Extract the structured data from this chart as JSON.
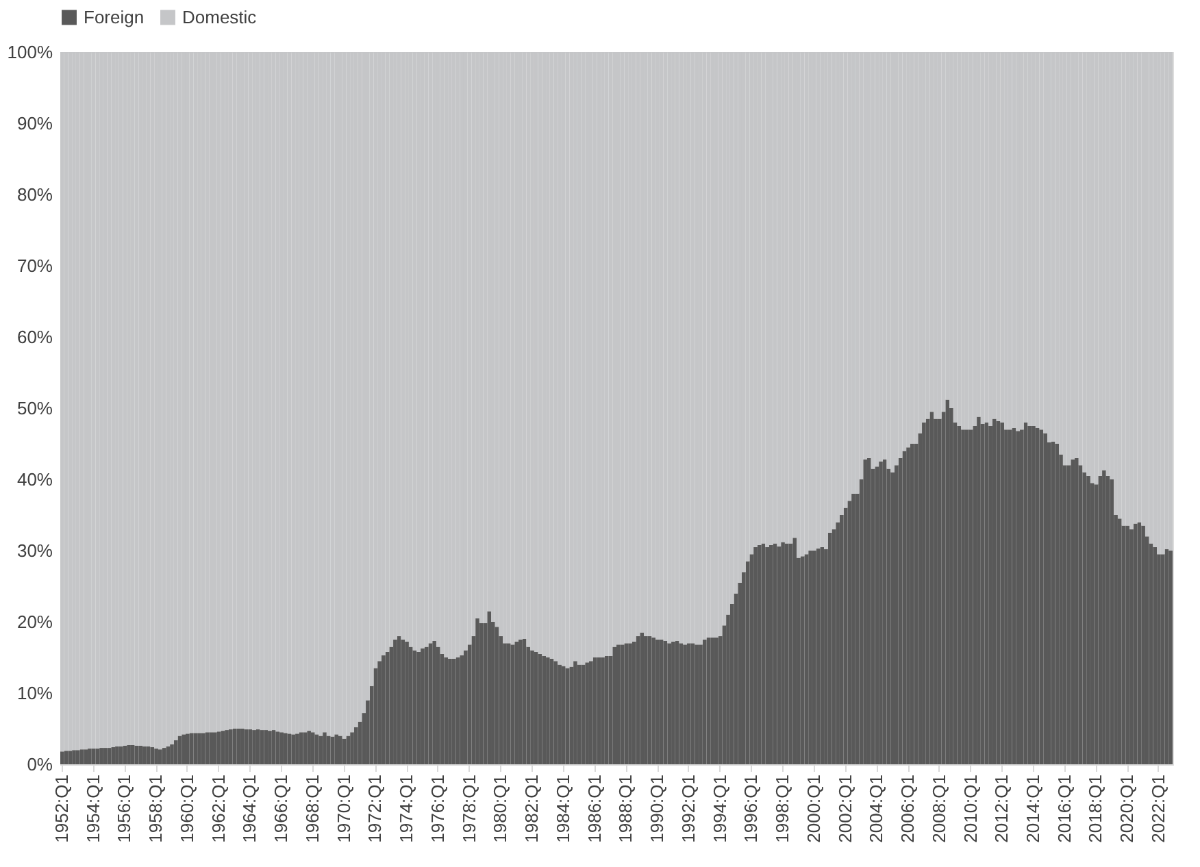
{
  "chart_data": {
    "type": "bar",
    "stacked": true,
    "legend": "top",
    "grid": false,
    "categories": [
      "1952:Q1",
      null,
      null,
      null,
      null,
      null,
      null,
      null,
      "1954:Q1",
      null,
      null,
      null,
      null,
      null,
      null,
      null,
      "1956:Q1",
      null,
      null,
      null,
      null,
      null,
      null,
      null,
      "1958:Q1",
      null,
      null,
      null,
      null,
      null,
      null,
      null,
      "1960:Q1",
      null,
      null,
      null,
      null,
      null,
      null,
      null,
      "1962:Q1",
      null,
      null,
      null,
      null,
      null,
      null,
      null,
      "1964:Q1",
      null,
      null,
      null,
      null,
      null,
      null,
      null,
      "1966:Q1",
      null,
      null,
      null,
      null,
      null,
      null,
      null,
      "1968:Q1",
      null,
      null,
      null,
      null,
      null,
      null,
      null,
      "1970:Q1",
      null,
      null,
      null,
      null,
      null,
      null,
      null,
      "1972:Q1",
      null,
      null,
      null,
      null,
      null,
      null,
      null,
      "1974:Q1",
      null,
      null,
      null,
      null,
      null,
      null,
      null,
      "1976:Q1",
      null,
      null,
      null,
      null,
      null,
      null,
      null,
      "1978:Q1",
      null,
      null,
      null,
      null,
      null,
      null,
      null,
      "1980:Q1",
      null,
      null,
      null,
      null,
      null,
      null,
      null,
      "1982:Q1",
      null,
      null,
      null,
      null,
      null,
      null,
      null,
      "1984:Q1",
      null,
      null,
      null,
      null,
      null,
      null,
      null,
      "1986:Q1",
      null,
      null,
      null,
      null,
      null,
      null,
      null,
      "1988:Q1",
      null,
      null,
      null,
      null,
      null,
      null,
      null,
      "1990:Q1",
      null,
      null,
      null,
      null,
      null,
      null,
      null,
      "1992:Q1",
      null,
      null,
      null,
      null,
      null,
      null,
      null,
      "1994:Q1",
      null,
      null,
      null,
      null,
      null,
      null,
      null,
      "1996:Q1",
      null,
      null,
      null,
      null,
      null,
      null,
      null,
      "1998:Q1",
      null,
      null,
      null,
      null,
      null,
      null,
      null,
      "2000:Q1",
      null,
      null,
      null,
      null,
      null,
      null,
      null,
      "2002:Q1",
      null,
      null,
      null,
      null,
      null,
      null,
      null,
      "2004:Q1",
      null,
      null,
      null,
      null,
      null,
      null,
      null,
      "2006:Q1",
      null,
      null,
      null,
      null,
      null,
      null,
      null,
      "2008:Q1",
      null,
      null,
      null,
      null,
      null,
      null,
      null,
      "2010:Q1",
      null,
      null,
      null,
      null,
      null,
      null,
      null,
      "2012:Q1",
      null,
      null,
      null,
      null,
      null,
      null,
      null,
      "2014:Q1",
      null,
      null,
      null,
      null,
      null,
      null,
      null,
      "2016:Q1",
      null,
      null,
      null,
      null,
      null,
      null,
      null,
      "2018:Q1",
      null,
      null,
      null,
      null,
      null,
      null,
      null,
      "2020:Q1",
      null,
      null,
      null,
      null,
      null,
      null,
      null,
      "2022:Q1",
      null,
      null,
      null
    ],
    "ylim": [
      0,
      100
    ],
    "yticks": [
      {
        "value": 0,
        "label": "0%"
      },
      {
        "value": 10,
        "label": "10%"
      },
      {
        "value": 20,
        "label": "20%"
      },
      {
        "value": 30,
        "label": "30%"
      },
      {
        "value": 40,
        "label": "40%"
      },
      {
        "value": 50,
        "label": "50%"
      },
      {
        "value": 60,
        "label": "60%"
      },
      {
        "value": 70,
        "label": "70%"
      },
      {
        "value": 80,
        "label": "80%"
      },
      {
        "value": 90,
        "label": "90%"
      },
      {
        "value": 100,
        "label": "100%"
      }
    ],
    "series": [
      {
        "name": "Foreign",
        "color": "#595959",
        "values": [
          1.8,
          1.9,
          1.9,
          2.0,
          2.0,
          2.1,
          2.1,
          2.2,
          2.2,
          2.2,
          2.3,
          2.3,
          2.3,
          2.4,
          2.5,
          2.5,
          2.6,
          2.7,
          2.7,
          2.6,
          2.6,
          2.5,
          2.5,
          2.4,
          2.2,
          2.1,
          2.3,
          2.5,
          2.8,
          3.4,
          4.0,
          4.2,
          4.3,
          4.4,
          4.4,
          4.4,
          4.4,
          4.5,
          4.5,
          4.5,
          4.6,
          4.7,
          4.8,
          4.9,
          5.0,
          5.0,
          5.0,
          4.9,
          4.9,
          4.8,
          4.9,
          4.8,
          4.8,
          4.7,
          4.8,
          4.6,
          4.5,
          4.4,
          4.3,
          4.2,
          4.3,
          4.5,
          4.5,
          4.7,
          4.5,
          4.2,
          4.0,
          4.5,
          4.0,
          3.9,
          4.2,
          4.0,
          3.6,
          4.0,
          4.5,
          5.2,
          6.0,
          7.2,
          9.0,
          11.0,
          13.5,
          14.5,
          15.3,
          15.8,
          16.5,
          17.5,
          18.0,
          17.5,
          17.2,
          16.5,
          16.0,
          15.8,
          16.3,
          16.5,
          17.0,
          17.3,
          16.5,
          15.5,
          15.0,
          14.8,
          14.8,
          15.0,
          15.3,
          16.0,
          16.8,
          18.0,
          20.5,
          19.8,
          19.8,
          21.5,
          20.0,
          19.3,
          18.0,
          17.0,
          17.0,
          16.8,
          17.2,
          17.5,
          17.6,
          16.5,
          16.0,
          15.8,
          15.5,
          15.2,
          15.0,
          14.8,
          14.5,
          14.0,
          13.8,
          13.5,
          13.7,
          14.5,
          14.0,
          14.0,
          14.3,
          14.5,
          15.0,
          15.0,
          15.0,
          15.2,
          15.2,
          16.5,
          16.8,
          16.8,
          17.0,
          17.0,
          17.2,
          18.0,
          18.5,
          18.0,
          18.0,
          17.8,
          17.5,
          17.5,
          17.3,
          17.0,
          17.2,
          17.3,
          17.0,
          16.8,
          17.0,
          17.0,
          16.8,
          16.8,
          17.5,
          17.8,
          17.8,
          17.8,
          18.0,
          19.5,
          21.0,
          22.5,
          24.0,
          25.5,
          27.0,
          28.5,
          29.5,
          30.5,
          30.8,
          31.0,
          30.5,
          30.8,
          31.0,
          30.6,
          31.2,
          31.0,
          31.0,
          31.8,
          29.0,
          29.2,
          29.5,
          30.0,
          30.0,
          30.3,
          30.5,
          30.2,
          32.5,
          33.0,
          34.0,
          35.0,
          36.0,
          37.0,
          38.0,
          38.0,
          40.0,
          42.8,
          43.0,
          41.5,
          41.8,
          42.5,
          42.8,
          41.5,
          41.0,
          42.0,
          43.0,
          44.0,
          44.5,
          45.0,
          45.0,
          46.5,
          48.0,
          48.5,
          49.5,
          48.5,
          48.5,
          49.5,
          51.2,
          50.0,
          48.0,
          47.5,
          47.0,
          47.0,
          47.0,
          47.5,
          48.8,
          47.8,
          48.0,
          47.5,
          48.5,
          48.2,
          48.0,
          47.0,
          47.0,
          47.2,
          46.8,
          47.0,
          48.0,
          47.5,
          47.5,
          47.2,
          47.0,
          46.5,
          45.2,
          45.3,
          45.0,
          43.5,
          42.0,
          42.0,
          42.8,
          43.0,
          42.0,
          41.0,
          40.5,
          39.5,
          39.3,
          40.5,
          41.3,
          40.5,
          40.0,
          35.0,
          34.5,
          33.5,
          33.5,
          33.0,
          33.8,
          34.0,
          33.5,
          32.0,
          31.0,
          30.5,
          29.5,
          29.5,
          30.2,
          30.0
        ]
      },
      {
        "name": "Domestic",
        "color": "#c5c6c8",
        "values": [
          98.2,
          98.1,
          98.1,
          98.0,
          98.0,
          97.9,
          97.9,
          97.8,
          97.8,
          97.8,
          97.7,
          97.7,
          97.7,
          97.6,
          97.5,
          97.5,
          97.4,
          97.3,
          97.3,
          97.4,
          97.4,
          97.5,
          97.5,
          97.6,
          97.8,
          97.9,
          97.7,
          97.5,
          97.2,
          96.6,
          96.0,
          95.8,
          95.7,
          95.6,
          95.6,
          95.6,
          95.6,
          95.5,
          95.5,
          95.5,
          95.4,
          95.3,
          95.2,
          95.1,
          95.0,
          95.0,
          95.0,
          95.1,
          95.1,
          95.2,
          95.1,
          95.2,
          95.2,
          95.3,
          95.2,
          95.4,
          95.5,
          95.6,
          95.7,
          95.8,
          95.7,
          95.5,
          95.5,
          95.3,
          95.5,
          95.8,
          96.0,
          95.5,
          96.0,
          96.1,
          95.8,
          96.0,
          96.4,
          96.0,
          95.5,
          94.8,
          94.0,
          92.8,
          91.0,
          89.0,
          86.5,
          85.5,
          84.7,
          84.2,
          83.5,
          82.5,
          82.0,
          82.5,
          82.8,
          83.5,
          84.0,
          84.2,
          83.7,
          83.5,
          83.0,
          82.7,
          83.5,
          84.5,
          85.0,
          85.2,
          85.2,
          85.0,
          84.7,
          84.0,
          83.2,
          82.0,
          79.5,
          80.2,
          80.2,
          78.5,
          80.0,
          80.7,
          82.0,
          83.0,
          83.0,
          83.2,
          82.8,
          82.5,
          82.4,
          83.5,
          84.0,
          84.2,
          84.5,
          84.8,
          85.0,
          85.2,
          85.5,
          86.0,
          86.2,
          86.5,
          86.3,
          85.5,
          86.0,
          86.0,
          85.7,
          85.5,
          85.0,
          85.0,
          85.0,
          84.8,
          84.8,
          83.5,
          83.2,
          83.2,
          83.0,
          83.0,
          82.8,
          82.0,
          81.5,
          82.0,
          82.0,
          82.2,
          82.5,
          82.5,
          82.7,
          83.0,
          82.8,
          82.7,
          83.0,
          83.2,
          83.0,
          83.0,
          83.2,
          83.2,
          82.5,
          82.2,
          82.2,
          82.2,
          82.0,
          80.5,
          79.0,
          77.5,
          76.0,
          74.5,
          73.0,
          71.5,
          70.5,
          69.5,
          69.2,
          69.0,
          69.5,
          69.2,
          69.0,
          69.4,
          68.8,
          69.0,
          69.0,
          68.2,
          71.0,
          70.8,
          70.5,
          70.0,
          70.0,
          69.7,
          69.5,
          69.8,
          67.5,
          67.0,
          66.0,
          65.0,
          64.0,
          63.0,
          62.0,
          62.0,
          60.0,
          57.2,
          57.0,
          58.5,
          58.2,
          57.5,
          57.2,
          58.5,
          59.0,
          58.0,
          57.0,
          56.0,
          55.5,
          55.0,
          55.0,
          53.5,
          52.0,
          51.5,
          50.5,
          51.5,
          51.5,
          50.5,
          48.8,
          50.0,
          52.0,
          52.5,
          53.0,
          53.0,
          53.0,
          52.5,
          51.2,
          52.2,
          52.0,
          52.5,
          51.5,
          51.8,
          52.0,
          53.0,
          53.0,
          52.8,
          53.2,
          53.0,
          52.0,
          52.5,
          52.5,
          52.8,
          53.0,
          53.5,
          54.8,
          54.7,
          55.0,
          56.5,
          58.0,
          58.0,
          57.2,
          57.0,
          58.0,
          59.0,
          59.5,
          60.5,
          60.7,
          59.5,
          58.7,
          59.5,
          60.0,
          65.0,
          65.5,
          66.5,
          66.5,
          67.0,
          66.2,
          66.0,
          66.5,
          68.0,
          69.0,
          69.5,
          70.5,
          70.5,
          69.8,
          70.0
        ]
      }
    ]
  }
}
